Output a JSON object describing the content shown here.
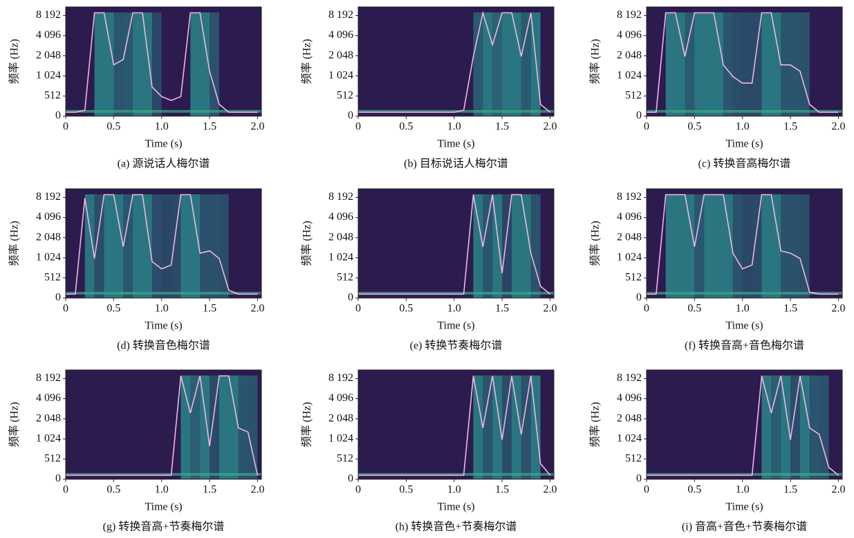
{
  "chart_data": [
    {
      "type": "spectrogram",
      "title": "(a) 源说话人梅尔谱",
      "xlabel": "Time (s)",
      "ylabel": "频率 (Hz)",
      "xlim": [
        0,
        2.04
      ],
      "ylim": [
        0,
        11025
      ],
      "yscale": "symlog",
      "linthresh": 512,
      "xticks": [
        0,
        0.5,
        {
          "value": 1,
          "label": "1.0"
        },
        1.5,
        {
          "value": 2,
          "label": "2.0"
        }
      ],
      "yticks": [
        0,
        512,
        {
          "value": 1024,
          "label": "1 024"
        },
        {
          "value": 2048,
          "label": "2 048"
        },
        {
          "value": 4096,
          "label": "4 096"
        },
        {
          "value": 8192,
          "label": "8 192"
        }
      ],
      "x": [
        0,
        0.1,
        0.2,
        0.3,
        0.4,
        0.5,
        0.6,
        0.7,
        0.8,
        0.9,
        1,
        1.1,
        1.2,
        1.3,
        1.4,
        1.5,
        1.6,
        1.7,
        1.8,
        1.9,
        2
      ],
      "series": [
        {
          "color": "#f2b6e2",
          "values": [
            100,
            100,
            150,
            9000,
            9000,
            1500,
            1800,
            9000,
            9000,
            700,
            500,
            400,
            500,
            9000,
            9000,
            1200,
            300,
            100,
            100,
            100,
            100
          ]
        }
      ]
    },
    {
      "type": "spectrogram",
      "title": "(b) 目标说话人梅尔谱",
      "xlabel": "Time (s)",
      "ylabel": "频率 (Hz)",
      "xlim": [
        0,
        2.04
      ],
      "ylim": [
        0,
        11025
      ],
      "yscale": "symlog",
      "linthresh": 512,
      "xticks": [
        0,
        0.5,
        {
          "value": 1,
          "label": "1.0"
        },
        1.5,
        {
          "value": 2,
          "label": "2.0"
        }
      ],
      "yticks": [
        0,
        512,
        {
          "value": 1024,
          "label": "1 024"
        },
        {
          "value": 2048,
          "label": "2 048"
        },
        {
          "value": 4096,
          "label": "4 096"
        },
        {
          "value": 8192,
          "label": "8 192"
        }
      ],
      "x": [
        0,
        0.1,
        0.2,
        0.3,
        0.4,
        0.5,
        0.6,
        0.7,
        0.8,
        0.9,
        1,
        1.1,
        1.2,
        1.3,
        1.4,
        1.5,
        1.6,
        1.7,
        1.8,
        1.9,
        2
      ],
      "series": [
        {
          "color": "#f2b6e2",
          "values": [
            100,
            100,
            100,
            100,
            100,
            100,
            100,
            100,
            100,
            100,
            100,
            150,
            2000,
            9000,
            3000,
            9000,
            9000,
            2000,
            9000,
            300,
            100
          ]
        }
      ]
    },
    {
      "type": "spectrogram",
      "title": "(c) 转换音高梅尔谱",
      "xlabel": "Time (s)",
      "ylabel": "频率 (Hz)",
      "xlim": [
        0,
        2.04
      ],
      "ylim": [
        0,
        11025
      ],
      "yscale": "symlog",
      "linthresh": 512,
      "xticks": [
        0,
        0.5,
        {
          "value": 1,
          "label": "1.0"
        },
        1.5,
        {
          "value": 2,
          "label": "2.0"
        }
      ],
      "yticks": [
        0,
        512,
        {
          "value": 1024,
          "label": "1 024"
        },
        {
          "value": 2048,
          "label": "2 048"
        },
        {
          "value": 4096,
          "label": "4 096"
        },
        {
          "value": 8192,
          "label": "8 192"
        }
      ],
      "x": [
        0,
        0.1,
        0.2,
        0.3,
        0.4,
        0.5,
        0.6,
        0.7,
        0.8,
        0.9,
        1,
        1.1,
        1.2,
        1.3,
        1.4,
        1.5,
        1.6,
        1.7,
        1.8,
        1.9,
        2
      ],
      "series": [
        {
          "color": "#f2b6e2",
          "values": [
            100,
            100,
            9000,
            9000,
            2000,
            9000,
            9000,
            9000,
            1500,
            1000,
            800,
            800,
            9000,
            9000,
            1500,
            1500,
            1200,
            300,
            100,
            100,
            100
          ]
        }
      ]
    },
    {
      "type": "spectrogram",
      "title": "(d) 转换音色梅尔谱",
      "xlabel": "Time (s)",
      "ylabel": "频率 (Hz)",
      "xlim": [
        0,
        2.04
      ],
      "ylim": [
        0,
        11025
      ],
      "yscale": "symlog",
      "linthresh": 512,
      "xticks": [
        0,
        0.5,
        {
          "value": 1,
          "label": "1.0"
        },
        1.5,
        {
          "value": 2,
          "label": "2.0"
        }
      ],
      "yticks": [
        0,
        512,
        {
          "value": 1024,
          "label": "1 024"
        },
        {
          "value": 2048,
          "label": "2 048"
        },
        {
          "value": 4096,
          "label": "4 096"
        },
        {
          "value": 8192,
          "label": "8 192"
        }
      ],
      "x": [
        0,
        0.1,
        0.2,
        0.3,
        0.4,
        0.5,
        0.6,
        0.7,
        0.8,
        0.9,
        1,
        1.1,
        1.2,
        1.3,
        1.4,
        1.5,
        1.6,
        1.7,
        1.8,
        1.9,
        2
      ],
      "series": [
        {
          "color": "#f2b6e2",
          "values": [
            100,
            100,
            8000,
            1000,
            9000,
            9000,
            1500,
            9000,
            9000,
            900,
            700,
            800,
            9000,
            9000,
            1200,
            1300,
            1000,
            200,
            100,
            100,
            100
          ]
        }
      ]
    },
    {
      "type": "spectrogram",
      "title": "(e) 转换节奏梅尔谱",
      "xlabel": "Time (s)",
      "ylabel": "频率 (Hz)",
      "xlim": [
        0,
        2.04
      ],
      "ylim": [
        0,
        11025
      ],
      "yscale": "symlog",
      "linthresh": 512,
      "xticks": [
        0,
        0.5,
        {
          "value": 1,
          "label": "1.0"
        },
        1.5,
        {
          "value": 2,
          "label": "2.0"
        }
      ],
      "yticks": [
        0,
        512,
        {
          "value": 1024,
          "label": "1 024"
        },
        {
          "value": 2048,
          "label": "2 048"
        },
        {
          "value": 4096,
          "label": "4 096"
        },
        {
          "value": 8192,
          "label": "8 192"
        }
      ],
      "x": [
        0,
        0.1,
        0.2,
        0.3,
        0.4,
        0.5,
        0.6,
        0.7,
        0.8,
        0.9,
        1,
        1.1,
        1.2,
        1.3,
        1.4,
        1.5,
        1.6,
        1.7,
        1.8,
        1.9,
        2
      ],
      "series": [
        {
          "color": "#f2b6e2",
          "values": [
            100,
            100,
            100,
            100,
            100,
            100,
            100,
            100,
            100,
            100,
            100,
            100,
            9000,
            1500,
            9000,
            600,
            9000,
            9000,
            1200,
            300,
            100
          ]
        }
      ]
    },
    {
      "type": "spectrogram",
      "title": "(f) 转换音高+音色梅尔谱",
      "xlabel": "Time (s)",
      "ylabel": "频率 (Hz)",
      "xlim": [
        0,
        2.04
      ],
      "ylim": [
        0,
        11025
      ],
      "yscale": "symlog",
      "linthresh": 512,
      "xticks": [
        0,
        0.5,
        {
          "value": 1,
          "label": "1.0"
        },
        1.5,
        {
          "value": 2,
          "label": "2.0"
        }
      ],
      "yticks": [
        0,
        512,
        {
          "value": 1024,
          "label": "1 024"
        },
        {
          "value": 2048,
          "label": "2 048"
        },
        {
          "value": 4096,
          "label": "4 096"
        },
        {
          "value": 8192,
          "label": "8 192"
        }
      ],
      "x": [
        0,
        0.1,
        0.2,
        0.3,
        0.4,
        0.5,
        0.6,
        0.7,
        0.8,
        0.9,
        1,
        1.1,
        1.2,
        1.3,
        1.4,
        1.5,
        1.6,
        1.7,
        1.8,
        1.9,
        2
      ],
      "series": [
        {
          "color": "#f2b6e2",
          "values": [
            100,
            100,
            9000,
            9000,
            9000,
            1500,
            9000,
            9000,
            9000,
            1200,
            700,
            800,
            9000,
            9000,
            1300,
            1200,
            1000,
            150,
            100,
            100,
            100
          ]
        }
      ]
    },
    {
      "type": "spectrogram",
      "title": "(g) 转换音高+节奏梅尔谱",
      "xlabel": "Time (s)",
      "ylabel": "频率 (Hz)",
      "xlim": [
        0,
        2.04
      ],
      "ylim": [
        0,
        11025
      ],
      "yscale": "symlog",
      "linthresh": 512,
      "xticks": [
        0,
        0.5,
        {
          "value": 1,
          "label": "1.0"
        },
        1.5,
        {
          "value": 2,
          "label": "2.0"
        }
      ],
      "yticks": [
        0,
        512,
        {
          "value": 1024,
          "label": "1 024"
        },
        {
          "value": 2048,
          "label": "2 048"
        },
        {
          "value": 4096,
          "label": "4 096"
        },
        {
          "value": 8192,
          "label": "8 192"
        }
      ],
      "x": [
        0,
        0.1,
        0.2,
        0.3,
        0.4,
        0.5,
        0.6,
        0.7,
        0.8,
        0.9,
        1,
        1.1,
        1.2,
        1.3,
        1.4,
        1.5,
        1.6,
        1.7,
        1.8,
        1.9,
        2
      ],
      "series": [
        {
          "color": "#f2b6e2",
          "values": [
            100,
            100,
            100,
            100,
            100,
            100,
            100,
            100,
            100,
            100,
            100,
            100,
            9000,
            2500,
            9000,
            800,
            9000,
            9000,
            1500,
            1300,
            100
          ]
        }
      ]
    },
    {
      "type": "spectrogram",
      "title": "(h) 转换音色+节奏梅尔谱",
      "xlabel": "Time (s)",
      "ylabel": "频率 (Hz)",
      "xlim": [
        0,
        2.04
      ],
      "ylim": [
        0,
        11025
      ],
      "yscale": "symlog",
      "linthresh": 512,
      "xticks": [
        0,
        0.5,
        {
          "value": 1,
          "label": "1.0"
        },
        1.5,
        {
          "value": 2,
          "label": "2.0"
        }
      ],
      "yticks": [
        0,
        512,
        {
          "value": 1024,
          "label": "1 024"
        },
        {
          "value": 2048,
          "label": "2 048"
        },
        {
          "value": 4096,
          "label": "4 096"
        },
        {
          "value": 8192,
          "label": "8 192"
        }
      ],
      "x": [
        0,
        0.1,
        0.2,
        0.3,
        0.4,
        0.5,
        0.6,
        0.7,
        0.8,
        0.9,
        1,
        1.1,
        1.2,
        1.3,
        1.4,
        1.5,
        1.6,
        1.7,
        1.8,
        1.9,
        2
      ],
      "series": [
        {
          "color": "#f2b6e2",
          "values": [
            100,
            100,
            100,
            100,
            100,
            100,
            100,
            100,
            100,
            100,
            100,
            100,
            9000,
            1500,
            9000,
            1000,
            9000,
            1200,
            9000,
            400,
            100
          ]
        }
      ]
    },
    {
      "type": "spectrogram",
      "title": "(i) 音高+音色+节奏梅尔谱",
      "xlabel": "Time (s)",
      "ylabel": "频率 (Hz)",
      "xlim": [
        0,
        2.04
      ],
      "ylim": [
        0,
        11025
      ],
      "yscale": "symlog",
      "linthresh": 512,
      "xticks": [
        0,
        0.5,
        {
          "value": 1,
          "label": "1.0"
        },
        1.5,
        {
          "value": 2,
          "label": "2.0"
        }
      ],
      "yticks": [
        0,
        512,
        {
          "value": 1024,
          "label": "1 024"
        },
        {
          "value": 2048,
          "label": "2 048"
        },
        {
          "value": 4096,
          "label": "4 096"
        },
        {
          "value": 8192,
          "label": "8 192"
        }
      ],
      "x": [
        0,
        0.1,
        0.2,
        0.3,
        0.4,
        0.5,
        0.6,
        0.7,
        0.8,
        0.9,
        1,
        1.1,
        1.2,
        1.3,
        1.4,
        1.5,
        1.6,
        1.7,
        1.8,
        1.9,
        2
      ],
      "series": [
        {
          "color": "#f2b6e2",
          "values": [
            100,
            100,
            100,
            100,
            100,
            100,
            100,
            100,
            100,
            100,
            100,
            100,
            9000,
            2500,
            9000,
            1000,
            9000,
            1500,
            1200,
            300,
            100
          ]
        }
      ]
    }
  ]
}
